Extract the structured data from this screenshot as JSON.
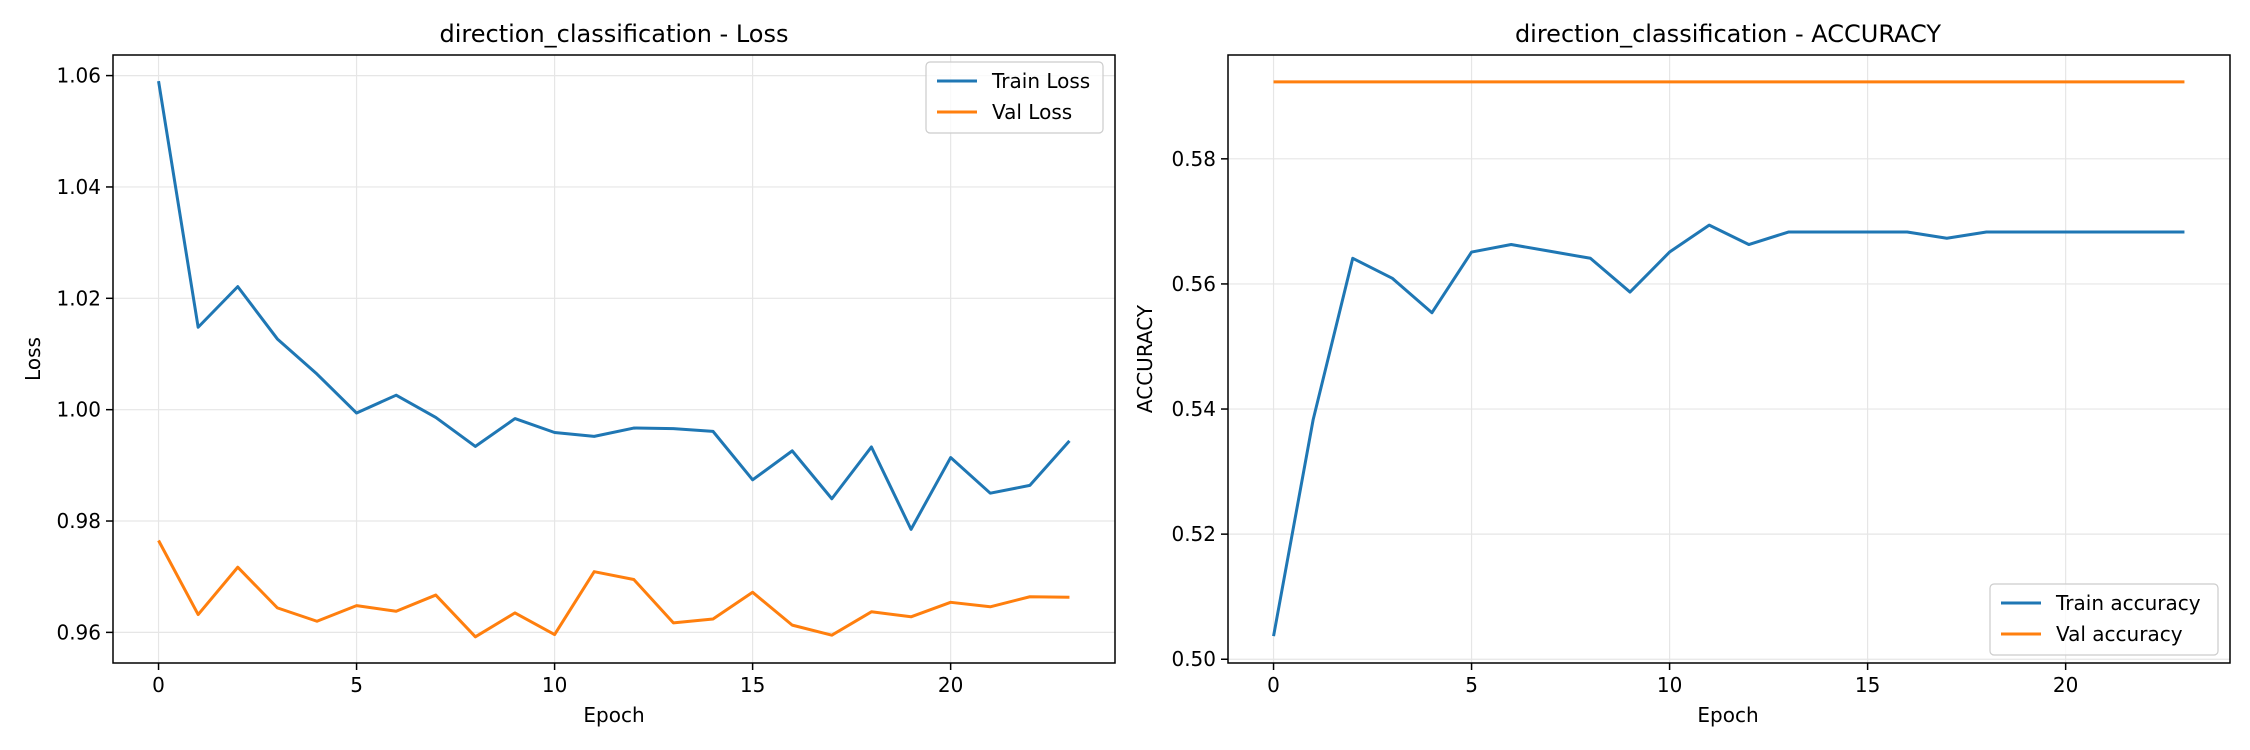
{
  "colors": {
    "train": "#1f77b4",
    "val": "#ff7f0e"
  },
  "chart_data": [
    {
      "type": "line",
      "title": "direction_classification - Loss",
      "xlabel": "Epoch",
      "ylabel": "Loss",
      "xlim": [
        -1.15,
        24.15
      ],
      "ylim": [
        0.9545,
        1.0637
      ],
      "xticks": [
        0,
        5,
        10,
        15,
        20
      ],
      "yticks": [
        0.96,
        0.98,
        1.0,
        1.02,
        1.04,
        1.06
      ],
      "yticks_labels": [
        "0.96",
        "0.98",
        "1.00",
        "1.02",
        "1.04",
        "1.06"
      ],
      "grid": true,
      "legend_position": "top-right",
      "x": [
        0,
        1,
        2,
        3,
        4,
        5,
        6,
        7,
        8,
        9,
        10,
        11,
        12,
        13,
        14,
        15,
        16,
        17,
        18,
        19,
        20,
        21,
        22,
        23
      ],
      "series": [
        {
          "name": "Train Loss",
          "color": "#1f77b4",
          "values": [
            1.059,
            1.0148,
            1.0221,
            1.0127,
            1.0064,
            0.9994,
            1.0026,
            0.9986,
            0.9934,
            0.9984,
            0.9959,
            0.9952,
            0.9967,
            0.9966,
            0.9961,
            0.9874,
            0.9926,
            0.984,
            0.9933,
            0.9785,
            0.9914,
            0.985,
            0.9864,
            0.9944
          ]
        },
        {
          "name": "Val Loss",
          "color": "#ff7f0e",
          "values": [
            0.9765,
            0.9632,
            0.9717,
            0.9644,
            0.962,
            0.9648,
            0.9638,
            0.9667,
            0.9592,
            0.9635,
            0.9596,
            0.9709,
            0.9695,
            0.9617,
            0.9624,
            0.9672,
            0.9613,
            0.9595,
            0.9637,
            0.9628,
            0.9654,
            0.9646,
            0.9664,
            0.9663
          ]
        }
      ]
    },
    {
      "type": "line",
      "title": "direction_classification - ACCURACY",
      "xlabel": "Epoch",
      "ylabel": "ACCURACY",
      "xlim": [
        -1.15,
        24.15
      ],
      "ylim": [
        0.4994,
        0.5966
      ],
      "xticks": [
        0,
        5,
        10,
        15,
        20
      ],
      "yticks": [
        0.5,
        0.52,
        0.54,
        0.56,
        0.58
      ],
      "yticks_labels": [
        "0.50",
        "0.52",
        "0.54",
        "0.56",
        "0.58"
      ],
      "grid": true,
      "legend_position": "bottom-right",
      "x": [
        0,
        1,
        2,
        3,
        4,
        5,
        6,
        7,
        8,
        9,
        10,
        11,
        12,
        13,
        14,
        15,
        16,
        17,
        18,
        19,
        20,
        21,
        22,
        23
      ],
      "series": [
        {
          "name": "Train accuracy",
          "color": "#1f77b4",
          "values": [
            0.5037,
            0.5383,
            0.5641,
            0.5609,
            0.5554,
            0.5651,
            0.5663,
            0.5652,
            0.5641,
            0.5587,
            0.5651,
            0.5694,
            0.5663,
            0.5683,
            0.5683,
            0.5683,
            0.5683,
            0.5673,
            0.5683,
            0.5683,
            0.5683,
            0.5683,
            0.5683,
            0.5683
          ]
        },
        {
          "name": "Val accuracy",
          "color": "#ff7f0e",
          "values": [
            0.5923,
            0.5923,
            0.5923,
            0.5923,
            0.5923,
            0.5923,
            0.5923,
            0.5923,
            0.5923,
            0.5923,
            0.5923,
            0.5923,
            0.5923,
            0.5923,
            0.5923,
            0.5923,
            0.5923,
            0.5923,
            0.5923,
            0.5923,
            0.5923,
            0.5923,
            0.5923,
            0.5923
          ]
        }
      ]
    }
  ]
}
